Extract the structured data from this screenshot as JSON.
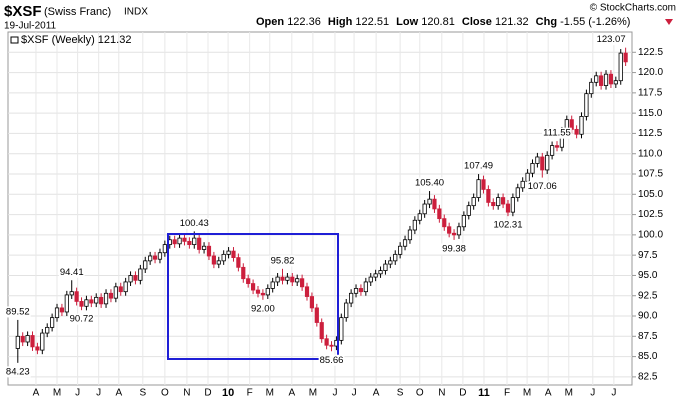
{
  "header": {
    "symbol": "$XSF",
    "name": "(Swiss Franc)",
    "exchange": "INDX",
    "date": "19-Jul-2011",
    "copyright": "© StockCharts.com",
    "quote": [
      {
        "label": "Open",
        "value": "122.36"
      },
      {
        "label": "High",
        "value": "122.51"
      },
      {
        "label": "Low",
        "value": "120.81"
      },
      {
        "label": "Close",
        "value": "121.32"
      },
      {
        "label": "Chg",
        "value": "-1.55 (-1.26%)"
      }
    ]
  },
  "chart_data": {
    "type": "candlestick",
    "legend": "$XSF (Weekly) 121.32",
    "up_color": "#000000",
    "down_color": "#cc1f3d",
    "grid": true,
    "open": [
      86,
      87.5,
      86.8,
      87.6,
      86.2,
      85.8,
      87.9,
      88.6,
      89.8,
      91.0,
      90.5,
      92.6,
      93.0,
      91.8,
      91.2,
      92.0,
      91.6,
      92.3,
      91.5,
      92.8,
      92.2,
      93.6,
      93.0,
      94.2,
      95.0,
      94.4,
      95.8,
      96.8,
      97.4,
      97.0,
      97.8,
      98.8,
      99.4,
      98.9,
      99.6,
      99.2,
      98.8,
      99.6,
      98.2,
      98.6,
      97.4,
      96.4,
      96.8,
      97.6,
      98.0,
      97.2,
      96.0,
      94.6,
      94.0,
      93.2,
      92.8,
      92.6,
      93.4,
      94.2,
      94.8,
      94.4,
      94.8,
      94.2,
      94.6,
      93.6,
      92.4,
      91.0,
      89.2,
      87.2,
      86.4,
      86.3,
      87.0,
      89.8,
      91.6,
      92.8,
      93.4,
      93.0,
      94.2,
      94.8,
      95.2,
      95.6,
      96.4,
      96.8,
      97.6,
      98.6,
      99.4,
      100.6,
      101.8,
      102.6,
      103.8,
      104.4,
      103.2,
      102.0,
      101.0,
      100.2,
      100.0,
      101.0,
      102.4,
      103.6,
      104.6,
      106.8,
      105.6,
      104.0,
      103.6,
      104.6,
      103.8,
      102.8,
      104.6,
      105.8,
      106.6,
      107.6,
      108.8,
      109.6,
      108.0,
      109.8,
      111.0,
      110.8,
      112.8,
      114.2,
      113.0,
      112.4,
      114.6,
      117.4,
      118.8,
      119.6,
      118.4,
      119.8,
      118.6,
      119.0,
      122.4
    ],
    "high": [
      89.52,
      88.0,
      88.1,
      88.1,
      86.7,
      88.4,
      89.1,
      90.3,
      91.5,
      91.5,
      93.1,
      94.41,
      93.5,
      92.3,
      92.5,
      92.5,
      92.8,
      92.8,
      93.3,
      93.3,
      94.1,
      94.1,
      94.7,
      95.5,
      95.5,
      96.3,
      97.3,
      97.9,
      97.9,
      98.3,
      99.3,
      99.9,
      99.9,
      100.1,
      100.1,
      99.7,
      100.43,
      100.1,
      99.1,
      99.1,
      97.9,
      97.3,
      98.1,
      98.5,
      98.5,
      97.7,
      96.5,
      95.1,
      94.5,
      93.7,
      93.3,
      93.9,
      94.7,
      95.3,
      95.82,
      95.3,
      95.3,
      95.1,
      95.1,
      94.1,
      92.9,
      91.5,
      89.7,
      87.7,
      86.9,
      87.5,
      90.3,
      92.1,
      93.3,
      93.9,
      93.9,
      94.7,
      95.3,
      95.7,
      96.1,
      96.9,
      97.3,
      98.1,
      99.1,
      99.9,
      101.1,
      102.3,
      103.1,
      104.3,
      105.4,
      104.9,
      103.7,
      102.5,
      101.5,
      100.7,
      101.5,
      102.9,
      104.1,
      105.1,
      107.49,
      107.3,
      106.1,
      104.5,
      105.1,
      105.1,
      104.3,
      105.1,
      106.3,
      107.1,
      108.1,
      109.3,
      110.1,
      110.1,
      110.3,
      111.5,
      111.55,
      113.3,
      114.7,
      114.7,
      113.5,
      115.1,
      117.9,
      119.3,
      120.1,
      120.1,
      120.3,
      120.3,
      119.5,
      122.9,
      123.07
    ],
    "low": [
      84.23,
      86.3,
      86.3,
      85.7,
      85.3,
      85.3,
      87.4,
      88.1,
      89.3,
      90.0,
      90.0,
      92.1,
      91.3,
      90.72,
      90.7,
      91.1,
      91.1,
      91.0,
      91.0,
      91.7,
      91.7,
      92.5,
      92.5,
      93.7,
      93.9,
      93.9,
      95.3,
      96.3,
      96.5,
      96.5,
      97.3,
      98.3,
      98.4,
      98.4,
      98.7,
      98.3,
      98.3,
      97.7,
      97.7,
      96.9,
      95.9,
      95.9,
      96.3,
      97.1,
      96.7,
      95.5,
      94.1,
      93.5,
      92.7,
      92.3,
      92.0,
      92.1,
      92.9,
      93.7,
      93.9,
      93.9,
      93.7,
      93.7,
      93.1,
      91.9,
      90.5,
      88.7,
      86.7,
      85.9,
      85.66,
      85.8,
      86.5,
      89.3,
      91.1,
      92.3,
      92.5,
      92.5,
      93.7,
      94.3,
      94.7,
      95.1,
      95.9,
      96.3,
      97.1,
      98.1,
      98.9,
      100.1,
      101.3,
      102.1,
      103.3,
      102.7,
      101.5,
      100.5,
      99.7,
      99.38,
      99.5,
      100.5,
      101.9,
      103.1,
      104.1,
      105.1,
      103.5,
      103.1,
      103.1,
      103.3,
      102.31,
      102.3,
      104.1,
      105.3,
      106.1,
      107.1,
      108.3,
      107.06,
      107.5,
      109.3,
      110.3,
      110.3,
      112.3,
      112.5,
      111.9,
      111.9,
      114.1,
      116.9,
      118.3,
      117.9,
      117.9,
      118.1,
      118.1,
      118.5,
      120.81
    ],
    "close": [
      87.5,
      86.8,
      87.6,
      86.2,
      85.8,
      87.9,
      88.6,
      89.8,
      91.0,
      90.5,
      92.6,
      93.0,
      91.8,
      91.2,
      92.0,
      91.6,
      92.3,
      91.5,
      92.8,
      92.2,
      93.6,
      93.0,
      94.2,
      95.0,
      94.4,
      95.8,
      96.8,
      97.4,
      97.0,
      97.8,
      98.8,
      99.4,
      98.9,
      99.6,
      99.2,
      98.8,
      99.6,
      98.2,
      98.6,
      97.4,
      96.4,
      96.8,
      97.6,
      98.0,
      97.2,
      96.0,
      94.6,
      94.0,
      93.2,
      92.8,
      92.6,
      93.4,
      94.2,
      94.8,
      94.4,
      94.8,
      94.2,
      94.6,
      93.6,
      92.4,
      91.0,
      89.2,
      87.2,
      86.4,
      86.3,
      87.0,
      89.8,
      91.6,
      92.8,
      93.4,
      93.0,
      94.2,
      94.8,
      95.2,
      95.6,
      96.4,
      96.8,
      97.6,
      98.6,
      99.4,
      100.6,
      101.8,
      102.6,
      103.8,
      104.4,
      103.2,
      102.0,
      101.0,
      100.2,
      100.0,
      101.0,
      102.4,
      103.6,
      104.6,
      106.8,
      105.6,
      104.0,
      103.6,
      104.6,
      103.8,
      102.8,
      104.6,
      105.8,
      106.6,
      107.6,
      108.8,
      109.6,
      108.0,
      109.8,
      111.0,
      110.8,
      112.8,
      114.2,
      113.0,
      112.4,
      114.6,
      117.4,
      118.8,
      119.6,
      118.4,
      119.8,
      118.6,
      119.0,
      122.4,
      121.32
    ],
    "annotations": [
      {
        "x": 0,
        "y": 89.52,
        "label": "89.52"
      },
      {
        "x": 0,
        "y": 84.23,
        "label": "84.23"
      },
      {
        "x": 11,
        "y": 94.41,
        "label": "94.41"
      },
      {
        "x": 13,
        "y": 90.72,
        "label": "90.72"
      },
      {
        "x": 36,
        "y": 100.43,
        "label": "100.43"
      },
      {
        "x": 50,
        "y": 92.0,
        "label": "92.00"
      },
      {
        "x": 54,
        "y": 95.82,
        "label": "95.82"
      },
      {
        "x": 64,
        "y": 85.66,
        "label": "85.66"
      },
      {
        "x": 84,
        "y": 105.4,
        "label": "105.40"
      },
      {
        "x": 89,
        "y": 99.38,
        "label": "99.38"
      },
      {
        "x": 94,
        "y": 107.49,
        "label": "107.49"
      },
      {
        "x": 100,
        "y": 102.31,
        "label": "102.31"
      },
      {
        "x": 110,
        "y": 111.55,
        "label": "111.55"
      },
      {
        "x": 107,
        "y": 107.06,
        "label": "107.06"
      },
      {
        "x": 124,
        "y": 123.07,
        "label": "123.07"
      }
    ],
    "xlim": [
      -2,
      125.3
    ],
    "xticks": [
      {
        "value": 3.7,
        "label": "A"
      },
      {
        "value": 8.0,
        "label": "M"
      },
      {
        "value": 12.2,
        "label": "J"
      },
      {
        "value": 16.5,
        "label": "J"
      },
      {
        "value": 20.6,
        "label": "A"
      },
      {
        "value": 25.5,
        "label": "S"
      },
      {
        "value": 30,
        "label": "O"
      },
      {
        "value": 34.5,
        "label": "N"
      },
      {
        "value": 38.8,
        "label": "D"
      },
      {
        "value": 42.9,
        "label": "10"
      },
      {
        "value": 47.3,
        "label": "F"
      },
      {
        "value": 51.4,
        "label": "M"
      },
      {
        "value": 55.9,
        "label": "A"
      },
      {
        "value": 60.2,
        "label": "M"
      },
      {
        "value": 64.7,
        "label": "J"
      },
      {
        "value": 68.6,
        "label": "J"
      },
      {
        "value": 73.1,
        "label": "A"
      },
      {
        "value": 78,
        "label": "S"
      },
      {
        "value": 82,
        "label": "O"
      },
      {
        "value": 86.5,
        "label": "N"
      },
      {
        "value": 90.8,
        "label": "D"
      },
      {
        "value": 95.1,
        "label": "11"
      },
      {
        "value": 99.8,
        "label": "F"
      },
      {
        "value": 103.9,
        "label": "M"
      },
      {
        "value": 108.2,
        "label": "A"
      },
      {
        "value": 112.4,
        "label": "M"
      },
      {
        "value": 117.3,
        "label": "J"
      },
      {
        "value": 121.6,
        "label": "J"
      }
    ],
    "ylim": [
      81.5,
      125
    ],
    "yticks": [
      82.5,
      {
        "value": 85,
        "label": "85.0"
      },
      87.5,
      {
        "value": 90,
        "label": "90.0"
      },
      92.5,
      {
        "value": 95,
        "label": "95.0"
      },
      97.5,
      {
        "value": 100,
        "label": "100.0"
      },
      102.5,
      {
        "value": 105,
        "label": "105.0"
      },
      107.5,
      {
        "value": 110,
        "label": "110.0"
      },
      112.5,
      {
        "value": 115,
        "label": "115.0"
      },
      117.5,
      {
        "value": 120,
        "label": "120.0"
      },
      122.5
    ]
  }
}
